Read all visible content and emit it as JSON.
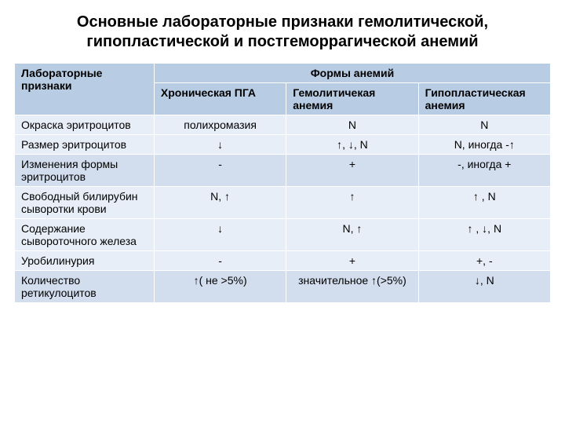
{
  "title": "Основные лабораторные признаки гемолитической, гипопластической и постгеморрагической анемий",
  "header": {
    "lab": "Лабораторные признаки",
    "forms": "Формы анемий",
    "col1": "Хроническая ПГА",
    "col2": "Гемолитичекая анемия",
    "col3": "Гипопластическая анемия"
  },
  "rows": [
    {
      "label": "Окраска эритроцитов",
      "c1": "полихромазия",
      "c2": "N",
      "c3": "N",
      "shade": "row-light"
    },
    {
      "label": "Размер эритроцитов",
      "c1": "↓",
      "c2": "↑, ↓, N",
      "c3": "N, иногда -↑",
      "shade": "row-light"
    },
    {
      "label": "Изменения формы эритроцитов",
      "c1": "-",
      "c2": "+",
      "c3": "-, иногда +",
      "shade": "row-dark"
    },
    {
      "label": "Свободный билирубин сыворотки крови",
      "c1": "N, ↑",
      "c2": "↑",
      "c3": "↑ , N",
      "shade": "row-light"
    },
    {
      "label": "Содержание сывороточного железа",
      "c1": "↓",
      "c2": "N, ↑",
      "c3": "↑ , ↓, N",
      "shade": "row-light"
    },
    {
      "label": "Уробилинурия",
      "c1": "-",
      "c2": "+",
      "c3": "+, -",
      "shade": "row-light"
    },
    {
      "label": "Количество ретикулоцитов",
      "c1": "↑( не >5%)",
      "c2": "значительное ↑(>5%)",
      "c3": "↓, N",
      "shade": "row-dark"
    }
  ],
  "colors": {
    "header_bg": "#b8cde4",
    "row_light": "#e8eef7",
    "row_dark": "#d2dded",
    "border": "#ffffff"
  }
}
